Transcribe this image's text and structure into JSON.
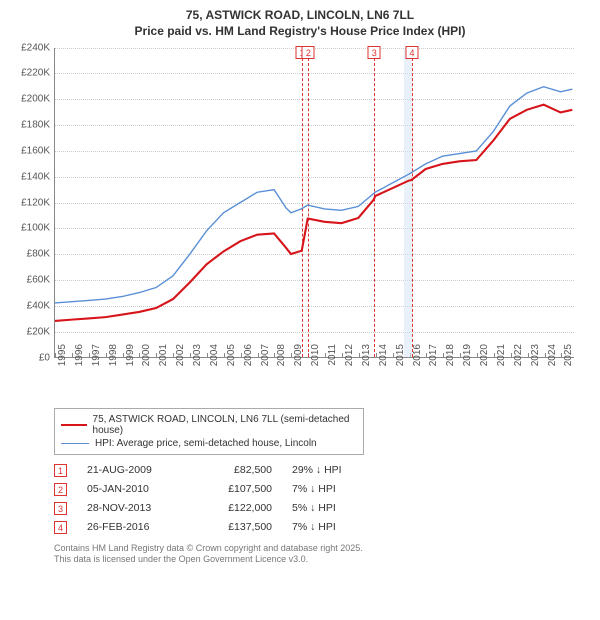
{
  "title_line1": "75, ASTWICK ROAD, LINCOLN, LN6 7LL",
  "title_line2": "Price paid vs. HM Land Registry's House Price Index (HPI)",
  "chart": {
    "type": "line",
    "background_color": "#ffffff",
    "grid_color": "#cccccc",
    "x_years": [
      1995,
      1996,
      1997,
      1998,
      1999,
      2000,
      2001,
      2002,
      2003,
      2004,
      2005,
      2006,
      2007,
      2008,
      2009,
      2010,
      2011,
      2012,
      2013,
      2014,
      2015,
      2016,
      2017,
      2018,
      2019,
      2020,
      2021,
      2022,
      2023,
      2024,
      2025
    ],
    "xmin": 1995,
    "xmax": 2025.8,
    "ymin": 0,
    "ymax": 240000,
    "ytick_step": 20000,
    "yticks": [
      "£0",
      "£20K",
      "£40K",
      "£60K",
      "£80K",
      "£100K",
      "£120K",
      "£140K",
      "£160K",
      "£180K",
      "£200K",
      "£220K",
      "£240K"
    ],
    "shade": {
      "start": 2015.7,
      "end": 2016.17,
      "color": "#d6e4f5"
    },
    "markers": [
      {
        "n": "1",
        "x": 2009.64
      },
      {
        "n": "2",
        "x": 2010.01
      },
      {
        "n": "3",
        "x": 2013.91
      },
      {
        "n": "4",
        "x": 2016.15
      }
    ],
    "series": [
      {
        "id": "hpi",
        "color": "#5a8fd6",
        "width": 1.4,
        "label": "HPI: Average price, semi-detached house, Lincoln",
        "points": [
          [
            1995,
            42000
          ],
          [
            1996,
            43000
          ],
          [
            1997,
            44000
          ],
          [
            1998,
            45000
          ],
          [
            1999,
            47000
          ],
          [
            2000,
            50000
          ],
          [
            2001,
            54000
          ],
          [
            2002,
            63000
          ],
          [
            2003,
            80000
          ],
          [
            2004,
            98000
          ],
          [
            2005,
            112000
          ],
          [
            2006,
            120000
          ],
          [
            2007,
            128000
          ],
          [
            2008,
            130000
          ],
          [
            2008.7,
            116000
          ],
          [
            2009,
            112000
          ],
          [
            2009.6,
            115000
          ],
          [
            2010,
            118000
          ],
          [
            2011,
            115000
          ],
          [
            2012,
            114000
          ],
          [
            2013,
            117000
          ],
          [
            2014,
            128000
          ],
          [
            2015,
            135000
          ],
          [
            2016,
            142000
          ],
          [
            2017,
            150000
          ],
          [
            2018,
            156000
          ],
          [
            2019,
            158000
          ],
          [
            2020,
            160000
          ],
          [
            2021,
            175000
          ],
          [
            2022,
            195000
          ],
          [
            2023,
            205000
          ],
          [
            2024,
            210000
          ],
          [
            2025,
            206000
          ],
          [
            2025.7,
            208000
          ]
        ]
      },
      {
        "id": "property",
        "color": "#d6141a",
        "width": 2.1,
        "label": "75, ASTWICK ROAD, LINCOLN, LN6 7LL (semi-detached house)",
        "points": [
          [
            1995,
            28000
          ],
          [
            1996,
            29000
          ],
          [
            1997,
            30000
          ],
          [
            1998,
            31000
          ],
          [
            1999,
            33000
          ],
          [
            2000,
            35000
          ],
          [
            2001,
            38000
          ],
          [
            2002,
            45000
          ],
          [
            2003,
            58000
          ],
          [
            2004,
            72000
          ],
          [
            2005,
            82000
          ],
          [
            2006,
            90000
          ],
          [
            2007,
            95000
          ],
          [
            2008,
            96000
          ],
          [
            2008.7,
            85000
          ],
          [
            2009,
            80000
          ],
          [
            2009.63,
            82500
          ],
          [
            2009.64,
            82500
          ],
          [
            2010.0,
            107500
          ],
          [
            2010.01,
            107500
          ],
          [
            2011,
            105000
          ],
          [
            2012,
            104000
          ],
          [
            2013,
            108000
          ],
          [
            2013.9,
            122000
          ],
          [
            2013.91,
            122000
          ],
          [
            2014,
            125000
          ],
          [
            2015,
            131000
          ],
          [
            2016,
            137000
          ],
          [
            2016.15,
            137500
          ],
          [
            2017,
            146000
          ],
          [
            2018,
            150000
          ],
          [
            2019,
            152000
          ],
          [
            2020,
            153000
          ],
          [
            2021,
            168000
          ],
          [
            2022,
            185000
          ],
          [
            2023,
            192000
          ],
          [
            2024,
            196000
          ],
          [
            2025,
            190000
          ],
          [
            2025.7,
            192000
          ]
        ]
      }
    ]
  },
  "legend": [
    {
      "color": "#d6141a",
      "width": 2.1,
      "text": "75, ASTWICK ROAD, LINCOLN, LN6 7LL (semi-detached house)"
    },
    {
      "color": "#5a8fd6",
      "width": 1.4,
      "text": "HPI: Average price, semi-detached house, Lincoln"
    }
  ],
  "transactions": [
    {
      "n": "1",
      "date": "21-AUG-2009",
      "price": "£82,500",
      "delta": "29% ↓ HPI"
    },
    {
      "n": "2",
      "date": "05-JAN-2010",
      "price": "£107,500",
      "delta": "7% ↓ HPI"
    },
    {
      "n": "3",
      "date": "28-NOV-2013",
      "price": "£122,000",
      "delta": "5% ↓ HPI"
    },
    {
      "n": "4",
      "date": "26-FEB-2016",
      "price": "£137,500",
      "delta": "7% ↓ HPI"
    }
  ],
  "footnote_l1": "Contains HM Land Registry data © Crown copyright and database right 2025.",
  "footnote_l2": "This data is licensed under the Open Government Licence v3.0."
}
